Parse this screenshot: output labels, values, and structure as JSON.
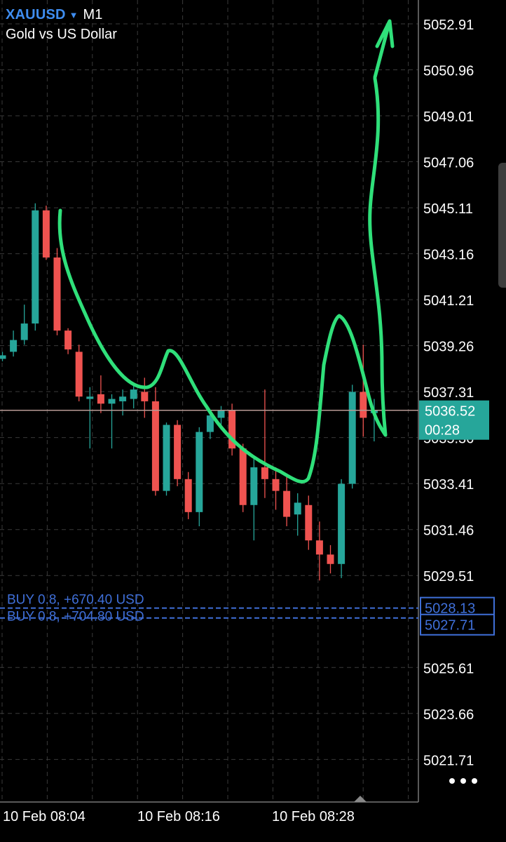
{
  "header": {
    "symbol": "XAUUSD",
    "timeframe": "M1",
    "description": "Gold vs US Dollar"
  },
  "price_axis": {
    "labels": [
      "5052.91",
      "5050.96",
      "5049.01",
      "5047.06",
      "5045.11",
      "5043.16",
      "5041.21",
      "5039.26",
      "5037.31",
      "5033.41",
      "5031.46",
      "5029.51",
      "5025.61",
      "5023.66",
      "5021.71"
    ],
    "hidden_label": "5035.36"
  },
  "time_axis": {
    "labels": [
      "10 Feb 08:04",
      "10 Feb 08:16",
      "10 Feb 08:28"
    ]
  },
  "current_price": {
    "price": "5036.52",
    "countdown": "00:28",
    "value": 5036.52
  },
  "positions": [
    {
      "label": "BUY 0.8,  +670.40 USD",
      "price_label": "5028.13",
      "price": 5028.13
    },
    {
      "label": "BUY 0.8,  +704.80 USD",
      "price_label": "5027.71",
      "price": 5027.71
    }
  ],
  "colors": {
    "background": "#000000",
    "grid": "#3a3a3a",
    "bull": "#26a69a",
    "bear": "#ef5350",
    "price_line": "#b89a94",
    "current_price_box": "#26a69a",
    "position_line": "#3f6fd8",
    "annotation": "#2fe07a",
    "symbol": "#3f8df0"
  },
  "candles": [
    {
      "time": "08:01",
      "o": 5038.7,
      "h": 5039.0,
      "l": 5038.6,
      "c": 5038.85
    },
    {
      "time": "08:02",
      "o": 5039.0,
      "h": 5039.9,
      "l": 5038.8,
      "c": 5039.5
    },
    {
      "time": "08:03",
      "o": 5039.5,
      "h": 5041.0,
      "l": 5039.3,
      "c": 5040.2
    },
    {
      "time": "08:04",
      "o": 5040.2,
      "h": 5045.3,
      "l": 5039.9,
      "c": 5045.0
    },
    {
      "time": "08:05",
      "o": 5045.0,
      "h": 5045.2,
      "l": 5042.9,
      "c": 5043.0
    },
    {
      "time": "08:06",
      "o": 5043.0,
      "h": 5043.4,
      "l": 5039.7,
      "c": 5039.9
    },
    {
      "time": "08:07",
      "o": 5039.9,
      "h": 5040.0,
      "l": 5038.9,
      "c": 5039.1
    },
    {
      "time": "08:08",
      "o": 5039.0,
      "h": 5039.3,
      "l": 5036.9,
      "c": 5037.1
    },
    {
      "time": "08:09",
      "o": 5037.0,
      "h": 5037.5,
      "l": 5034.9,
      "c": 5037.1
    },
    {
      "time": "08:10",
      "o": 5037.2,
      "h": 5038.0,
      "l": 5036.4,
      "c": 5036.8
    },
    {
      "time": "08:11",
      "o": 5036.8,
      "h": 5037.2,
      "l": 5034.9,
      "c": 5037.0
    },
    {
      "time": "08:12",
      "o": 5036.9,
      "h": 5037.4,
      "l": 5036.3,
      "c": 5037.1
    },
    {
      "time": "08:13",
      "o": 5037.0,
      "h": 5037.6,
      "l": 5036.6,
      "c": 5037.4
    },
    {
      "time": "08:14",
      "o": 5037.3,
      "h": 5037.9,
      "l": 5036.2,
      "c": 5036.9
    },
    {
      "time": "08:15",
      "o": 5036.9,
      "h": 5037.5,
      "l": 5032.9,
      "c": 5033.1
    },
    {
      "time": "08:16",
      "o": 5033.1,
      "h": 5036.0,
      "l": 5032.9,
      "c": 5035.9
    },
    {
      "time": "08:17",
      "o": 5035.9,
      "h": 5036.1,
      "l": 5033.3,
      "c": 5033.6
    },
    {
      "time": "08:18",
      "o": 5033.6,
      "h": 5033.9,
      "l": 5031.9,
      "c": 5032.2
    },
    {
      "time": "08:19",
      "o": 5032.2,
      "h": 5035.8,
      "l": 5031.6,
      "c": 5035.6
    },
    {
      "time": "08:20",
      "o": 5035.6,
      "h": 5036.5,
      "l": 5035.3,
      "c": 5036.3
    },
    {
      "time": "08:21",
      "o": 5036.2,
      "h": 5036.7,
      "l": 5035.7,
      "c": 5036.5
    },
    {
      "time": "08:22",
      "o": 5036.5,
      "h": 5036.8,
      "l": 5034.6,
      "c": 5034.9
    },
    {
      "time": "08:23",
      "o": 5034.9,
      "h": 5035.1,
      "l": 5032.2,
      "c": 5032.5
    },
    {
      "time": "08:24",
      "o": 5032.5,
      "h": 5034.5,
      "l": 5031.0,
      "c": 5034.1
    },
    {
      "time": "08:25",
      "o": 5034.1,
      "h": 5037.4,
      "l": 5032.8,
      "c": 5033.6
    },
    {
      "time": "08:26",
      "o": 5033.6,
      "h": 5034.1,
      "l": 5032.3,
      "c": 5033.1
    },
    {
      "time": "08:27",
      "o": 5033.1,
      "h": 5033.8,
      "l": 5031.6,
      "c": 5032.0
    },
    {
      "time": "08:28",
      "o": 5032.1,
      "h": 5033.0,
      "l": 5031.2,
      "c": 5032.6
    },
    {
      "time": "08:29",
      "o": 5032.5,
      "h": 5032.9,
      "l": 5030.6,
      "c": 5031.0
    },
    {
      "time": "08:30",
      "o": 5031.0,
      "h": 5031.8,
      "l": 5029.3,
      "c": 5030.4
    },
    {
      "time": "08:31",
      "o": 5030.4,
      "h": 5030.8,
      "l": 5029.6,
      "c": 5030.0
    },
    {
      "time": "08:32",
      "o": 5030.0,
      "h": 5033.6,
      "l": 5029.4,
      "c": 5033.4
    },
    {
      "time": "08:33",
      "o": 5033.4,
      "h": 5037.6,
      "l": 5033.2,
      "c": 5037.3
    },
    {
      "time": "08:34",
      "o": 5037.3,
      "h": 5039.3,
      "l": 5035.4,
      "c": 5036.2
    },
    {
      "time": "08:35",
      "o": 5036.4,
      "h": 5037.0,
      "l": 5035.2,
      "c": 5036.52
    }
  ]
}
